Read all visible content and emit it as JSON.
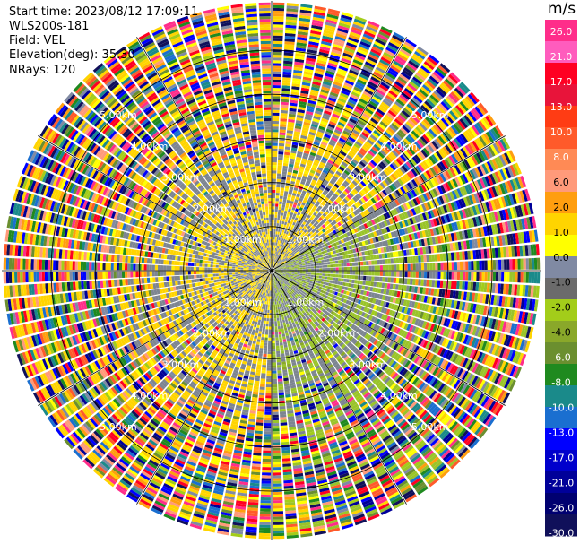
{
  "header": {
    "start_time": "Start time: 2023/08/12 17:09:11",
    "instrument": "WLS200s-181",
    "field": "Field: VEL",
    "elevation": "Elevation(deg): 35.30",
    "nrays": "NRays: 120"
  },
  "colorbar": {
    "units": "m/s",
    "ticks": [
      "26.0",
      "21.0",
      "17.0",
      "13.0",
      "10.0",
      "8.0",
      "6.0",
      "2.0",
      "1.0",
      "0.0",
      "-1.0",
      "-2.0",
      "-4.0",
      "-6.0",
      "-8.0",
      "-10.0",
      "-13.0",
      "-17.0",
      "-21.0",
      "-26.0",
      "-30.0"
    ],
    "colors": [
      "#ff2d8a",
      "#ff5cbd",
      "#ff0022",
      "#e8143a",
      "#ff3c14",
      "#ff5a2a",
      "#ff8a55",
      "#ff9a7a",
      "#ff9e0f",
      "#ffd400",
      "#ffff00",
      "#808aa3",
      "#6b6b6b",
      "#a3cd1a",
      "#8aa82a",
      "#6b8f2f",
      "#1f8a1f",
      "#1a8a8a",
      "#1a6fd0",
      "#0000ff",
      "#0000cc",
      "#000099",
      "#000070",
      "#10105a"
    ]
  },
  "ring_labels": [
    "1.00km",
    "2.00km",
    "3.00km",
    "4.00km",
    "5.00km"
  ],
  "chart_data": {
    "type": "ppi",
    "field": "VEL",
    "units": "m/s",
    "n_rays": 120,
    "elevation_deg": 35.3,
    "range_rings_km": [
      1,
      2,
      3,
      4,
      5
    ],
    "max_range_km": 7.3,
    "color_levels": [
      -30.0,
      -26.0,
      -21.0,
      -17.0,
      -13.0,
      -10.0,
      -8.0,
      -6.0,
      -4.0,
      -2.0,
      -1.0,
      0.0,
      1.0,
      2.0,
      6.0,
      8.0,
      10.0,
      13.0,
      17.0,
      21.0,
      26.0
    ],
    "sectors": [
      {
        "azimuth_from": 0,
        "azimuth_to": 60,
        "near_range_velocity": "1.0 to 2.0",
        "far_range": "noisy"
      },
      {
        "azimuth_from": 60,
        "azimuth_to": 180,
        "near_range_velocity": "-2.0 to -1.0",
        "far_range": "noisy"
      },
      {
        "azimuth_from": 180,
        "azimuth_to": 360,
        "near_range_velocity": "1.0 to 2.0",
        "far_range": "noisy"
      }
    ]
  }
}
